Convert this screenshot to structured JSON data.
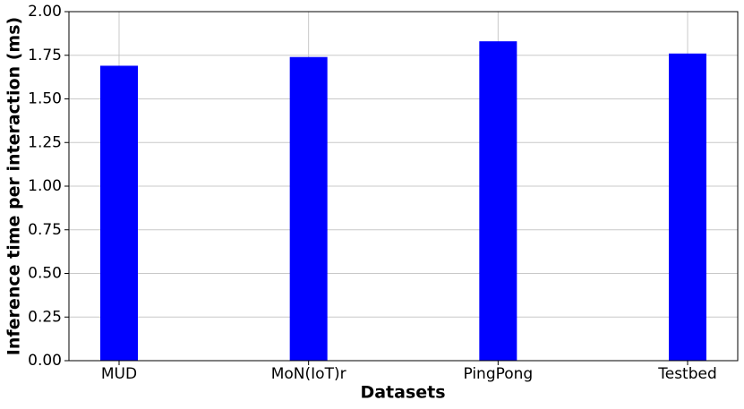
{
  "chart_data": {
    "type": "bar",
    "x_label": "Datasets",
    "y_label": "Inference time per interaction (ms)",
    "categories": [
      "MUD",
      "MoN(IoT)r",
      "PingPong",
      "Testbed"
    ],
    "values": [
      1.69,
      1.74,
      1.83,
      1.76
    ],
    "color": "#0000ff",
    "ylim": [
      0,
      2
    ],
    "yticks": [
      {
        "value": 0,
        "label": "0.00"
      },
      {
        "value": 0.25,
        "label": "0.25"
      },
      {
        "value": 0.5,
        "label": "0.50"
      },
      {
        "value": 0.75,
        "label": "0.75"
      },
      {
        "value": 1,
        "label": "1.00"
      },
      {
        "value": 1.25,
        "label": "1.25"
      },
      {
        "value": 1.5,
        "label": "1.50"
      },
      {
        "value": 1.75,
        "label": "1.75"
      },
      {
        "value": 2,
        "label": "2.00"
      }
    ],
    "grid": true
  }
}
